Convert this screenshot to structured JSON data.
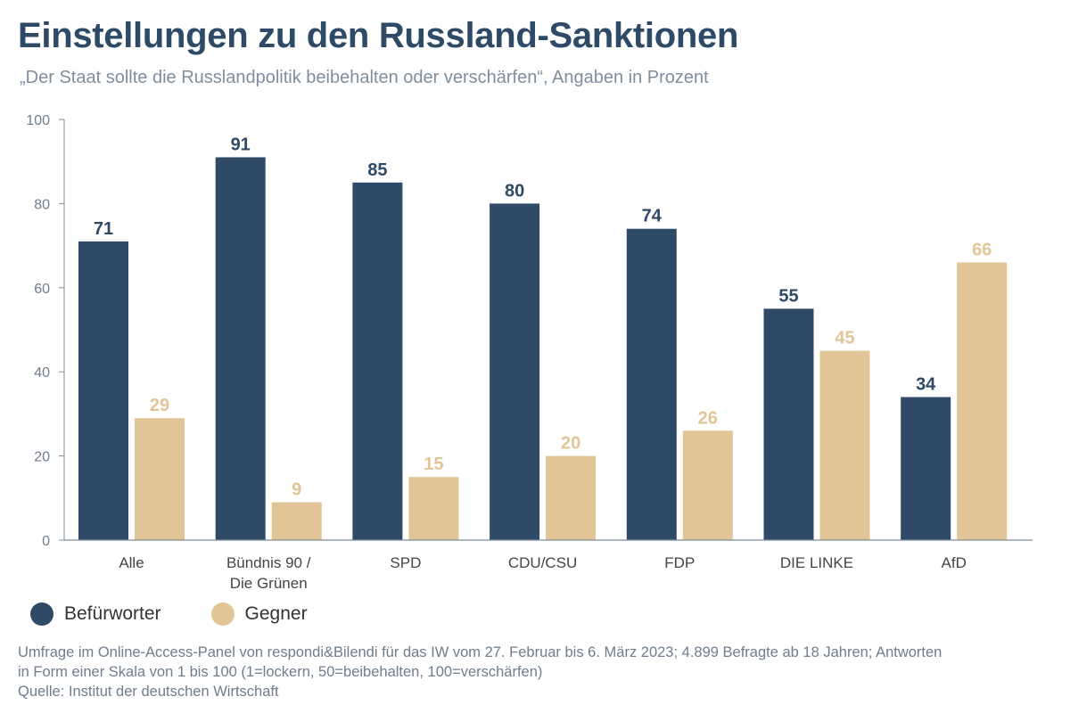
{
  "header": {
    "title": "Einstellungen zu den Russland-Sanktionen",
    "subtitle": "„Der Staat sollte die Russlandpolitik beibehalten oder verschärfen“, Angaben in Prozent"
  },
  "colors": {
    "befuerworter": "#2e4a66",
    "gegner": "#e1c596",
    "axis": "#7f8e9e",
    "axis_text": "#6f7d8c"
  },
  "chart_data": {
    "type": "bar",
    "title": "Einstellungen zu den Russland-Sanktionen",
    "xlabel": "",
    "ylabel": "",
    "ylim": [
      0,
      100
    ],
    "yticks": [
      0,
      20,
      40,
      60,
      80,
      100
    ],
    "grid": false,
    "categories": [
      [
        "Alle"
      ],
      [
        "Bündnis 90 /",
        "Die Grünen"
      ],
      [
        "SPD"
      ],
      [
        "CDU/CSU"
      ],
      [
        "FDP"
      ],
      [
        "DIE LINKE"
      ],
      [
        "AfD"
      ]
    ],
    "series": [
      {
        "name": "Befürworter",
        "values": [
          71,
          91,
          85,
          80,
          74,
          55,
          34
        ]
      },
      {
        "name": "Gegner",
        "values": [
          29,
          9,
          15,
          20,
          26,
          45,
          66
        ]
      }
    ]
  },
  "legend": {
    "items": [
      {
        "label": "Befürworter"
      },
      {
        "label": "Gegner"
      }
    ]
  },
  "footnote": {
    "line1": "Umfrage im Online-Access-Panel von respondi&Bilendi für das IW vom 27. Februar bis 6. März 2023; 4.899 Befragte ab 18 Jahren; Antworten",
    "line2": "in Form einer Skala von 1 bis 100 (1=lockern, 50=beibehalten, 100=verschärfen)",
    "line3": "Quelle: Institut der deutschen Wirtschaft"
  }
}
